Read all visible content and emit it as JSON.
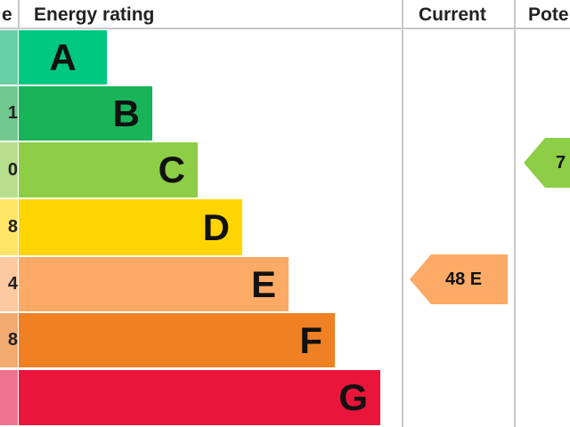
{
  "header": {
    "score_fragment": "e",
    "energy_rating": "Energy rating",
    "current": "Current",
    "potential_fragment": "Pote"
  },
  "bands": [
    {
      "letter": "A",
      "score_fragment": "",
      "color": "#00c781",
      "light": "#66cfa8"
    },
    {
      "letter": "B",
      "score_fragment": "1",
      "color": "#19b459",
      "light": "#72c98f"
    },
    {
      "letter": "C",
      "score_fragment": "0",
      "color": "#8dce46",
      "light": "#b6de8c"
    },
    {
      "letter": "D",
      "score_fragment": "8",
      "color": "#ffd500",
      "light": "#ffe466"
    },
    {
      "letter": "E",
      "score_fragment": "4",
      "color": "#fcaa65",
      "light": "#fcc9a0"
    },
    {
      "letter": "F",
      "score_fragment": "8",
      "color": "#ef8023",
      "light": "#f2aa70"
    },
    {
      "letter": "G",
      "score_fragment": "",
      "color": "#e9153b",
      "light": "#ef7390"
    }
  ],
  "current": {
    "label": "48 E",
    "band": "E",
    "color": "#fcaa65"
  },
  "potential": {
    "label_fragment": "7",
    "band": "C",
    "color": "#8dce46"
  }
}
